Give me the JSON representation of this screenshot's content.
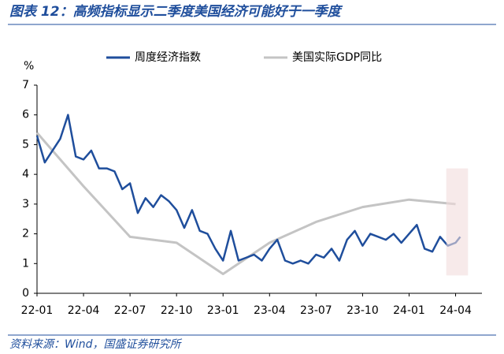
{
  "chart_data": {
    "type": "line",
    "title": "图表 12：高频指标显示二季度美国经济可能好于一季度",
    "source": "资料来源：Wind，国盛证券研究所",
    "y_unit": "%",
    "ylim": [
      0,
      7
    ],
    "yticks": [
      0,
      1,
      2,
      3,
      4,
      5,
      6,
      7
    ],
    "xlim": [
      0,
      28.7
    ],
    "xticks": [
      {
        "value": 0,
        "label": "22-01"
      },
      {
        "value": 3,
        "label": "22-04"
      },
      {
        "value": 6,
        "label": "22-07"
      },
      {
        "value": 9,
        "label": "22-10"
      },
      {
        "value": 12,
        "label": "23-01"
      },
      {
        "value": 15,
        "label": "23-04"
      },
      {
        "value": 18,
        "label": "23-07"
      },
      {
        "value": 21,
        "label": "23-10"
      },
      {
        "value": 24,
        "label": "24-01"
      },
      {
        "value": 27,
        "label": "24-04"
      }
    ],
    "legend": "top",
    "shaded_region": {
      "x": [
        26.4,
        27.8
      ],
      "y": [
        0.6,
        4.2
      ],
      "color": "#f2dcdc"
    },
    "series": [
      {
        "name": "周度经济指数",
        "color": "#1f4e9c",
        "x": [
          0,
          0.5,
          1,
          1.5,
          2,
          2.5,
          3,
          3.5,
          4,
          4.5,
          5,
          5.5,
          6,
          6.5,
          7,
          7.5,
          8,
          8.5,
          9,
          9.5,
          10,
          10.5,
          11,
          11.5,
          12,
          12.5,
          13,
          13.5,
          14,
          14.5,
          15,
          15.5,
          16,
          16.5,
          17,
          17.5,
          18,
          18.5,
          19,
          19.5,
          20,
          20.5,
          21,
          21.5,
          22,
          22.5,
          23,
          23.5,
          24,
          24.5,
          25,
          25.5,
          26,
          26.5,
          27,
          27.3
        ],
        "values": [
          5.3,
          4.4,
          4.8,
          5.2,
          6.0,
          4.6,
          4.5,
          4.8,
          4.2,
          4.2,
          4.1,
          3.5,
          3.7,
          2.7,
          3.2,
          2.9,
          3.3,
          3.1,
          2.8,
          2.2,
          2.8,
          2.1,
          2.0,
          1.5,
          1.1,
          2.1,
          1.1,
          1.2,
          1.3,
          1.1,
          1.5,
          1.8,
          1.1,
          1.0,
          1.1,
          1.0,
          1.3,
          1.2,
          1.5,
          1.1,
          1.8,
          2.1,
          1.6,
          2.0,
          1.9,
          1.8,
          2.0,
          1.7,
          2.0,
          2.3,
          1.5,
          1.4,
          1.9,
          1.6,
          1.7,
          1.9
        ]
      },
      {
        "name": "美国实际GDP同比",
        "color": "#c4c4c4",
        "x": [
          0,
          3,
          6,
          9,
          12,
          15,
          18,
          21,
          24,
          27
        ],
        "values": [
          5.4,
          3.6,
          1.9,
          1.7,
          0.65,
          1.7,
          2.4,
          2.9,
          3.15,
          3.0
        ]
      }
    ]
  }
}
